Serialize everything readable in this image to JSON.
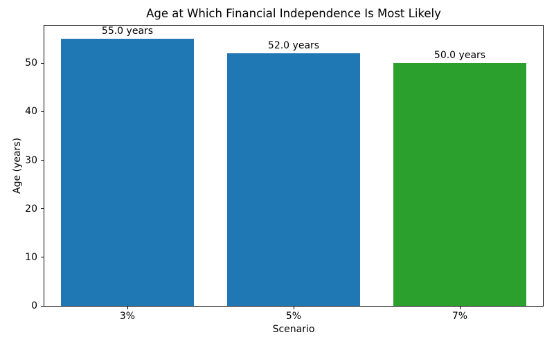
{
  "chart_data": {
    "type": "bar",
    "title": "Age at Which Financial Independence Is Most Likely",
    "xlabel": "Scenario",
    "ylabel": "Age (years)",
    "categories": [
      "3%",
      "5%",
      "7%"
    ],
    "values": [
      55.0,
      52.0,
      50.0
    ],
    "bar_labels": [
      "55.0 years",
      "52.0 years",
      "50.0 years"
    ],
    "bar_colors": [
      "#1f77b4",
      "#1f77b4",
      "#2ca02c"
    ],
    "ylim": [
      0,
      57.75
    ],
    "yticks": [
      0,
      10,
      20,
      30,
      40,
      50
    ],
    "bar_width_fraction": 0.8,
    "grid": false,
    "legend_position": "none",
    "background_color": "#ffffff"
  }
}
